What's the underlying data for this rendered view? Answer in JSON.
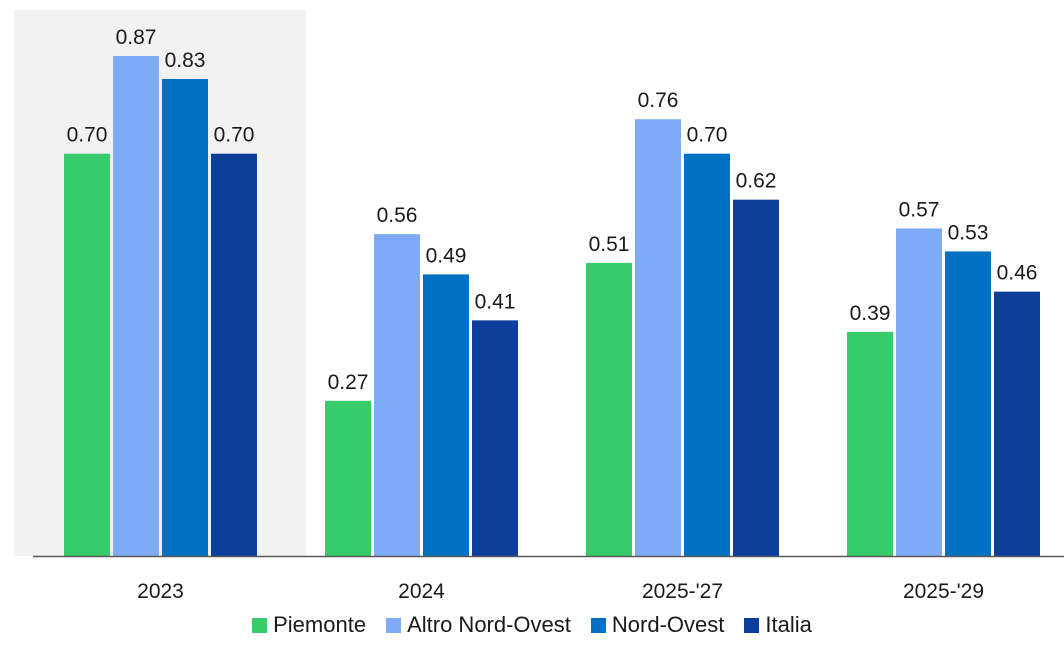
{
  "chart_data": {
    "type": "bar",
    "categories": [
      "2023",
      "2024",
      "2025-'27",
      "2025-'29"
    ],
    "series": [
      {
        "name": "Piemonte",
        "values": [
          0.7,
          0.27,
          0.51,
          0.39
        ],
        "color": "#37CB6C"
      },
      {
        "name": "Altro Nord-Ovest",
        "values": [
          0.87,
          0.56,
          0.76,
          0.57
        ],
        "color": "#7FAAF5"
      },
      {
        "name": "Nord-Ovest",
        "values": [
          0.83,
          0.49,
          0.7,
          0.53
        ],
        "color": "#0470C3"
      },
      {
        "name": "Italia",
        "values": [
          0.7,
          0.41,
          0.62,
          0.46
        ],
        "color": "#0B3F99"
      }
    ],
    "value_labels": [
      [
        "0.70",
        "0.27",
        "0.51",
        "0.39"
      ],
      [
        "0.87",
        "0.56",
        "0.76",
        "0.57"
      ],
      [
        "0.83",
        "0.49",
        "0.70",
        "0.53"
      ],
      [
        "0.70",
        "0.41",
        "0.62",
        "0.46"
      ]
    ],
    "highlighted_category": "2023",
    "highlight_color": "#F2F2F2",
    "axis_color": "#595959",
    "ylim": [
      0,
      0.9
    ],
    "grid": false,
    "legend_position": "bottom"
  }
}
